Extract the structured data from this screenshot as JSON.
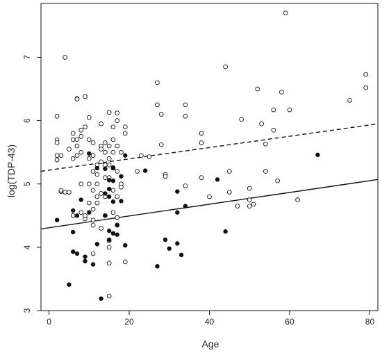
{
  "chart_data": {
    "type": "scatter",
    "title": "",
    "xlabel": "Age",
    "ylabel": "log(TDP-43)",
    "xlim": [
      -2,
      82
    ],
    "ylim": [
      3,
      7.85
    ],
    "x_ticks": [
      0,
      20,
      40,
      60,
      80
    ],
    "y_ticks": [
      3,
      4,
      5,
      6,
      7
    ],
    "grid": false,
    "legend": "none",
    "series": [
      {
        "marker": "open-circle",
        "points": [
          [
            2,
            5.7
          ],
          [
            2,
            5.65
          ],
          [
            2,
            5.45
          ],
          [
            2,
            5.38
          ],
          [
            2,
            6.07
          ],
          [
            3,
            4.88
          ],
          [
            3,
            4.9
          ],
          [
            3,
            5.45
          ],
          [
            4,
            7.0
          ],
          [
            4,
            4.87
          ],
          [
            5,
            4.87
          ],
          [
            5,
            5.55
          ],
          [
            6,
            5.8
          ],
          [
            6,
            5.7
          ],
          [
            6,
            5.4
          ],
          [
            6,
            4.5
          ],
          [
            7,
            5.7
          ],
          [
            7,
            5.6
          ],
          [
            7,
            5.45
          ],
          [
            7,
            6.35
          ],
          [
            7,
            6.34
          ],
          [
            8,
            5.85
          ],
          [
            8,
            5.75
          ],
          [
            8,
            5.5
          ],
          [
            8,
            5.0
          ],
          [
            8,
            4.55
          ],
          [
            9,
            5.9
          ],
          [
            9,
            6.38
          ],
          [
            9,
            4.45
          ],
          [
            9,
            4.5
          ],
          [
            10,
            6.05
          ],
          [
            10,
            5.7
          ],
          [
            10,
            5.4
          ],
          [
            10,
            5.0
          ],
          [
            10,
            4.7
          ],
          [
            11,
            5.65
          ],
          [
            11,
            5.45
          ],
          [
            11,
            5.2
          ],
          [
            11,
            4.9
          ],
          [
            11,
            4.6
          ],
          [
            11,
            4.43
          ],
          [
            11,
            4.35
          ],
          [
            11,
            3.9
          ],
          [
            12,
            5.3
          ],
          [
            12,
            5.15
          ],
          [
            12,
            5.0
          ],
          [
            12,
            4.8
          ],
          [
            12,
            4.7
          ],
          [
            13,
            5.95
          ],
          [
            13,
            5.6
          ],
          [
            13,
            5.55
          ],
          [
            13,
            5.35
          ],
          [
            13,
            4.85
          ],
          [
            13,
            4.3
          ],
          [
            14,
            5.65
          ],
          [
            14,
            5.5
          ],
          [
            14,
            5.3
          ],
          [
            14,
            5.1
          ],
          [
            14,
            4.8
          ],
          [
            14,
            4.5
          ],
          [
            15,
            6.13
          ],
          [
            15,
            5.6
          ],
          [
            15,
            5.4
          ],
          [
            15,
            5.3
          ],
          [
            15,
            5.1
          ],
          [
            15,
            4.1
          ],
          [
            15,
            4.0
          ],
          [
            15,
            3.75
          ],
          [
            15,
            3.23
          ],
          [
            16,
            5.9
          ],
          [
            16,
            5.7
          ],
          [
            16,
            5.5
          ],
          [
            16,
            5.25
          ],
          [
            16,
            4.9
          ],
          [
            16,
            4.55
          ],
          [
            17,
            6.12
          ],
          [
            17,
            6.0
          ],
          [
            17,
            5.6
          ],
          [
            17,
            5.2
          ],
          [
            17,
            4.8
          ],
          [
            17,
            4.47
          ],
          [
            17,
            4.35
          ],
          [
            18,
            5.5
          ],
          [
            18,
            5.0
          ],
          [
            18,
            4.95
          ],
          [
            19,
            5.9
          ],
          [
            19,
            5.8
          ],
          [
            19,
            3.77
          ],
          [
            22,
            5.2
          ],
          [
            23,
            5.45
          ],
          [
            25,
            5.43
          ],
          [
            27,
            6.6
          ],
          [
            27,
            6.25
          ],
          [
            28,
            6.1
          ],
          [
            28,
            5.62
          ],
          [
            29,
            5.15
          ],
          [
            29,
            5.12
          ],
          [
            34,
            6.25
          ],
          [
            34,
            6.07
          ],
          [
            34,
            4.97
          ],
          [
            38,
            5.8
          ],
          [
            38,
            5.65
          ],
          [
            38,
            5.1
          ],
          [
            40,
            4.8
          ],
          [
            44,
            6.85
          ],
          [
            45,
            5.2
          ],
          [
            45,
            4.87
          ],
          [
            47,
            4.65
          ],
          [
            48,
            6.02
          ],
          [
            50,
            4.93
          ],
          [
            50,
            4.75
          ],
          [
            50,
            4.65
          ],
          [
            51,
            4.68
          ],
          [
            52,
            6.5
          ],
          [
            53,
            5.95
          ],
          [
            54,
            5.63
          ],
          [
            54,
            5.2
          ],
          [
            56,
            6.17
          ],
          [
            56,
            5.85
          ],
          [
            57,
            5.05
          ],
          [
            58,
            6.45
          ],
          [
            59,
            7.7
          ],
          [
            60,
            6.17
          ],
          [
            62,
            4.75
          ],
          [
            75,
            6.32
          ],
          [
            79,
            6.73
          ],
          [
            79,
            6.52
          ]
        ]
      },
      {
        "marker": "filled-circle",
        "points": [
          [
            2,
            4.43
          ],
          [
            5,
            3.41
          ],
          [
            6,
            4.58
          ],
          [
            6,
            4.24
          ],
          [
            6,
            3.93
          ],
          [
            7,
            4.5
          ],
          [
            7,
            3.9
          ],
          [
            8,
            4.75
          ],
          [
            9,
            3.85
          ],
          [
            9,
            3.78
          ],
          [
            10,
            5.48
          ],
          [
            10,
            4.55
          ],
          [
            11,
            3.73
          ],
          [
            12,
            5.25
          ],
          [
            12,
            4.05
          ],
          [
            13,
            3.19
          ],
          [
            14,
            5.24
          ],
          [
            14,
            4.85
          ],
          [
            14,
            4.5
          ],
          [
            15,
            5.06
          ],
          [
            15,
            4.92
          ],
          [
            15,
            4.8
          ],
          [
            15,
            4.26
          ],
          [
            15,
            4.12
          ],
          [
            16,
            5.26
          ],
          [
            16,
            5.05
          ],
          [
            16,
            4.72
          ],
          [
            16,
            4.22
          ],
          [
            17,
            4.35
          ],
          [
            17,
            4.2
          ],
          [
            18,
            4.73
          ],
          [
            18,
            5.12
          ],
          [
            19,
            5.45
          ],
          [
            19,
            4.03
          ],
          [
            24,
            5.21
          ],
          [
            27,
            3.7
          ],
          [
            29,
            4.12
          ],
          [
            30,
            3.98
          ],
          [
            32,
            4.88
          ],
          [
            32,
            4.55
          ],
          [
            32,
            4.06
          ],
          [
            33,
            3.88
          ],
          [
            34,
            4.65
          ],
          [
            42,
            5.07
          ],
          [
            44,
            4.25
          ],
          [
            67,
            5.46
          ]
        ]
      }
    ],
    "lines": [
      {
        "style": "dashed",
        "x": [
          -2,
          82
        ],
        "y": [
          5.2,
          5.95
        ]
      },
      {
        "style": "solid",
        "x": [
          -2,
          82
        ],
        "y": [
          4.29,
          5.07
        ]
      }
    ]
  },
  "colors": {
    "ink": "#111111",
    "background": "#ffffff"
  }
}
